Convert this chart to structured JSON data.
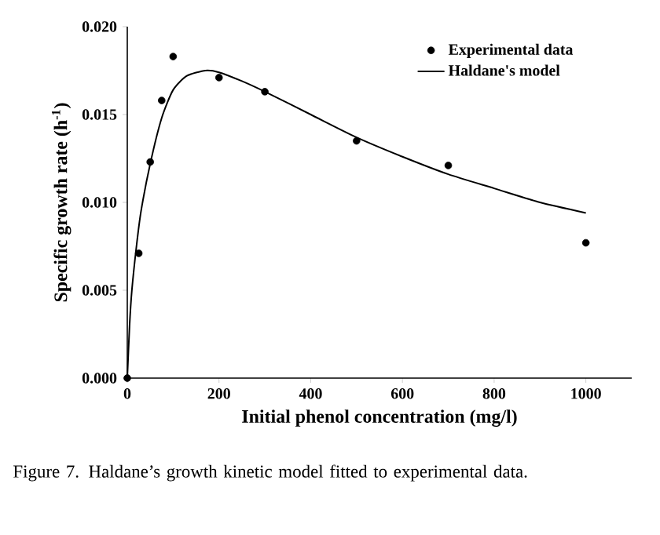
{
  "chart_data": {
    "type": "scatter",
    "xlabel": "Initial phenol concentration (mg/l)",
    "ylabel": "Specific growth rate (h$^{-1}$)",
    "xlim": [
      0,
      1100
    ],
    "ylim": [
      0,
      0.02
    ],
    "xticks": [
      0,
      200,
      400,
      600,
      800,
      1000
    ],
    "yticks": [
      {
        "value": 0,
        "label": "0.000"
      },
      0.005,
      {
        "value": 0.01,
        "label": "0.010"
      },
      0.015,
      {
        "value": 0.02,
        "label": "0.020"
      }
    ],
    "legend": "top right",
    "series": [
      {
        "name": "Experimental data",
        "marker": "circle",
        "color": "#000000",
        "x": [
          0,
          25,
          50,
          75,
          100,
          200,
          300,
          500,
          700,
          1000
        ],
        "values": [
          0,
          0.0071,
          0.0123,
          0.0158,
          0.0183,
          0.0171,
          0.0163,
          0.0135,
          0.0121,
          0.0077
        ]
      },
      {
        "name": "Haldane's model",
        "type": "line",
        "marker": "none",
        "line_style": "solid",
        "color": "#000000",
        "x": [
          0,
          5,
          10,
          20,
          30,
          50,
          75,
          100,
          130,
          170,
          200,
          250,
          300,
          400,
          500,
          600,
          700,
          800,
          900,
          1000
        ],
        "values": [
          0,
          0.003,
          0.005,
          0.0075,
          0.0095,
          0.0122,
          0.0148,
          0.0164,
          0.0172,
          0.0175,
          0.0174,
          0.0169,
          0.0163,
          0.015,
          0.0137,
          0.0126,
          0.0116,
          0.0108,
          0.01,
          0.0094
        ]
      }
    ],
    "annotations": [
      "Figure 7.    Haldane’s growth kinetic model fitted to experimental data."
    ]
  }
}
